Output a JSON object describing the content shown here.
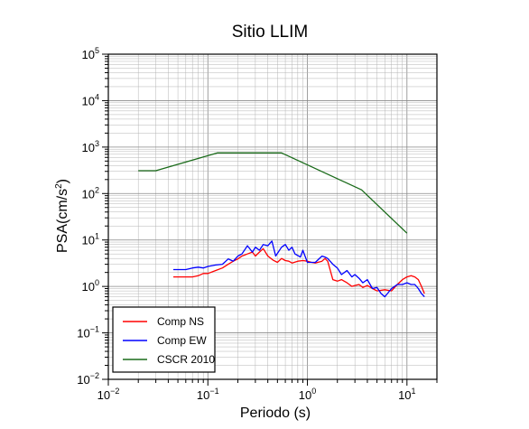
{
  "chart_data": {
    "type": "line",
    "title": "Sitio LLIM",
    "xlabel": "Periodo (s)",
    "ylabel_base": "PSA(cm/s",
    "ylabel_sup": "2",
    "ylabel_tail": ")",
    "x_scale": "log",
    "y_scale": "log",
    "xlim": [
      0.01,
      20
    ],
    "ylim": [
      0.01,
      100000
    ],
    "grid": true,
    "legend_position": "bottom-left",
    "x_ticks": [
      {
        "value": 0.01,
        "base": "10",
        "exp": "−2"
      },
      {
        "value": 0.1,
        "base": "10",
        "exp": "−1"
      },
      {
        "value": 1,
        "base": "10",
        "exp": "0"
      },
      {
        "value": 10,
        "base": "10",
        "exp": "1"
      }
    ],
    "y_ticks": [
      {
        "value": 0.01,
        "base": "10",
        "exp": "−2"
      },
      {
        "value": 0.1,
        "base": "10",
        "exp": "−1"
      },
      {
        "value": 1,
        "base": "10",
        "exp": "0"
      },
      {
        "value": 10,
        "base": "10",
        "exp": "1"
      },
      {
        "value": 100,
        "base": "10",
        "exp": "2"
      },
      {
        "value": 1000,
        "base": "10",
        "exp": "3"
      },
      {
        "value": 10000,
        "base": "10",
        "exp": "4"
      },
      {
        "value": 100000,
        "base": "10",
        "exp": "5"
      }
    ],
    "series": [
      {
        "name": "Comp NS",
        "color": "#ff0000",
        "points": [
          [
            0.045,
            1.6
          ],
          [
            0.05,
            1.6
          ],
          [
            0.06,
            1.6
          ],
          [
            0.07,
            1.6
          ],
          [
            0.08,
            1.7
          ],
          [
            0.09,
            1.9
          ],
          [
            0.1,
            1.9
          ],
          [
            0.12,
            2.2
          ],
          [
            0.14,
            2.5
          ],
          [
            0.16,
            3.0
          ],
          [
            0.18,
            3.5
          ],
          [
            0.2,
            3.9
          ],
          [
            0.22,
            4.5
          ],
          [
            0.25,
            5.0
          ],
          [
            0.28,
            5.5
          ],
          [
            0.3,
            4.5
          ],
          [
            0.33,
            5.5
          ],
          [
            0.36,
            6.5
          ],
          [
            0.4,
            4.5
          ],
          [
            0.45,
            3.7
          ],
          [
            0.5,
            3.3
          ],
          [
            0.55,
            4.0
          ],
          [
            0.6,
            3.6
          ],
          [
            0.65,
            3.5
          ],
          [
            0.7,
            3.2
          ],
          [
            0.8,
            3.5
          ],
          [
            0.9,
            3.6
          ],
          [
            1.0,
            3.5
          ],
          [
            1.1,
            3.3
          ],
          [
            1.2,
            3.2
          ],
          [
            1.4,
            3.5
          ],
          [
            1.5,
            4.0
          ],
          [
            1.6,
            3.5
          ],
          [
            1.7,
            2.2
          ],
          [
            1.8,
            1.4
          ],
          [
            2.0,
            1.3
          ],
          [
            2.2,
            1.4
          ],
          [
            2.5,
            1.2
          ],
          [
            2.8,
            1.0
          ],
          [
            3.0,
            1.05
          ],
          [
            3.3,
            1.1
          ],
          [
            3.6,
            0.95
          ],
          [
            4.0,
            1.05
          ],
          [
            4.5,
            0.9
          ],
          [
            5.0,
            0.8
          ],
          [
            6.0,
            0.85
          ],
          [
            7.0,
            0.8
          ],
          [
            8.0,
            1.1
          ],
          [
            9.0,
            1.4
          ],
          [
            10.0,
            1.6
          ],
          [
            11.0,
            1.7
          ],
          [
            12.0,
            1.6
          ],
          [
            13.0,
            1.4
          ],
          [
            14.0,
            1.0
          ],
          [
            15.0,
            0.7
          ]
        ]
      },
      {
        "name": "Comp EW",
        "color": "#0000ff",
        "points": [
          [
            0.045,
            2.3
          ],
          [
            0.05,
            2.3
          ],
          [
            0.06,
            2.3
          ],
          [
            0.07,
            2.5
          ],
          [
            0.08,
            2.6
          ],
          [
            0.09,
            2.5
          ],
          [
            0.1,
            2.7
          ],
          [
            0.12,
            2.9
          ],
          [
            0.14,
            3.0
          ],
          [
            0.16,
            3.9
          ],
          [
            0.18,
            3.5
          ],
          [
            0.2,
            4.5
          ],
          [
            0.22,
            5.0
          ],
          [
            0.25,
            7.5
          ],
          [
            0.28,
            5.5
          ],
          [
            0.3,
            7.0
          ],
          [
            0.33,
            6.0
          ],
          [
            0.36,
            8.0
          ],
          [
            0.4,
            7.5
          ],
          [
            0.44,
            9.5
          ],
          [
            0.48,
            4.5
          ],
          [
            0.55,
            7.0
          ],
          [
            0.6,
            8.0
          ],
          [
            0.65,
            6.0
          ],
          [
            0.7,
            7.0
          ],
          [
            0.75,
            5.0
          ],
          [
            0.85,
            4.3
          ],
          [
            0.9,
            6.0
          ],
          [
            1.0,
            3.3
          ],
          [
            1.1,
            3.3
          ],
          [
            1.2,
            3.3
          ],
          [
            1.4,
            4.5
          ],
          [
            1.5,
            4.3
          ],
          [
            1.6,
            4.0
          ],
          [
            1.8,
            3.0
          ],
          [
            2.0,
            2.5
          ],
          [
            2.2,
            1.8
          ],
          [
            2.5,
            2.2
          ],
          [
            2.8,
            1.6
          ],
          [
            3.0,
            1.8
          ],
          [
            3.3,
            1.5
          ],
          [
            3.6,
            1.2
          ],
          [
            4.0,
            1.4
          ],
          [
            4.5,
            0.9
          ],
          [
            5.0,
            0.95
          ],
          [
            5.5,
            0.7
          ],
          [
            6.0,
            0.6
          ],
          [
            7.0,
            0.9
          ],
          [
            8.0,
            1.1
          ],
          [
            9.0,
            1.1
          ],
          [
            10.0,
            1.2
          ],
          [
            11.0,
            1.1
          ],
          [
            12.0,
            1.1
          ],
          [
            13.0,
            0.9
          ],
          [
            14.0,
            0.7
          ],
          [
            15.0,
            0.6
          ]
        ]
      },
      {
        "name": "CSCR 2010",
        "color": "#1a6b1a",
        "points": [
          [
            0.02,
            310
          ],
          [
            0.03,
            310
          ],
          [
            0.125,
            750
          ],
          [
            0.55,
            750
          ],
          [
            3.5,
            120
          ],
          [
            10.0,
            14
          ]
        ]
      }
    ]
  }
}
